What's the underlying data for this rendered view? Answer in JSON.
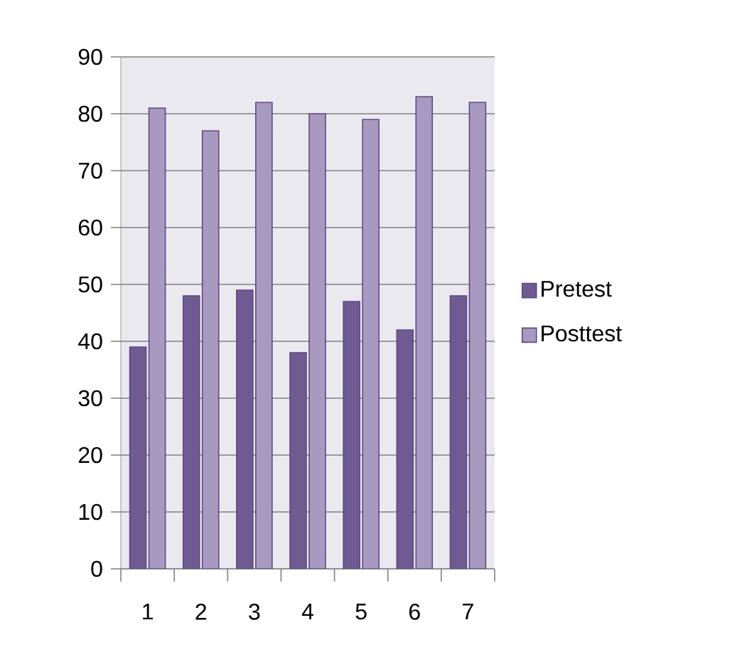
{
  "chart_data": {
    "type": "bar",
    "categories": [
      "1",
      "2",
      "3",
      "4",
      "5",
      "6",
      "7"
    ],
    "series": [
      {
        "name": "Pretest",
        "color": "#6f5a91",
        "values": [
          39,
          48,
          49,
          38,
          47,
          42,
          48
        ]
      },
      {
        "name": "Posttest",
        "color": "#a899c1",
        "values": [
          81,
          77,
          82,
          80,
          79,
          83,
          82
        ]
      }
    ],
    "ylim": [
      0,
      90
    ],
    "yticks": [
      0,
      10,
      20,
      30,
      40,
      50,
      60,
      70,
      80,
      90
    ],
    "grid": "y",
    "legend": "right"
  }
}
